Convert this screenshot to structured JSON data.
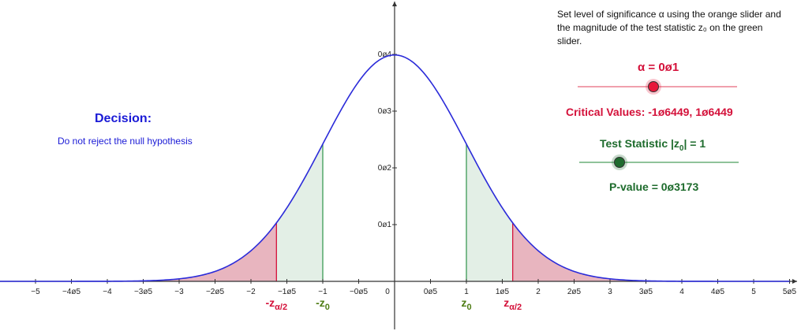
{
  "instructions": "Set level of significance α using the orange slider and the magnitude of the test statistic z₀ on the green slider.",
  "decision": {
    "title": "Decision:",
    "text": "Do not reject the null hypothesis"
  },
  "alpha": {
    "label": "α = 0ø1",
    "value": 0.1,
    "slider_min": 0.01,
    "slider_max": 0.2,
    "color": "#e8173b"
  },
  "critical_values": {
    "label": "Critical Values: -1ø6449, 1ø6449",
    "value": 1.6449,
    "color": "#d4113a"
  },
  "test_statistic": {
    "label_pre": "Test Statistic |z",
    "label_sub": "0",
    "label_post": "| = 1",
    "value": 1,
    "slider_min": 0,
    "slider_max": 4,
    "color": "#1f6b2e"
  },
  "p_value": {
    "label": "P-value = 0ø3173",
    "value": 0.3173
  },
  "chart_data": {
    "type": "area",
    "function": "standard normal density",
    "xlim": [
      -5.5,
      5.5
    ],
    "ylim": [
      0,
      0.4
    ],
    "x_ticks": [
      -5,
      -4.5,
      -4,
      -3.5,
      -3,
      -2.5,
      -2,
      -1.5,
      -1,
      -0.5,
      0,
      0.5,
      1,
      1.5,
      2,
      2.5,
      3,
      3.5,
      4,
      4.5,
      5,
      5.5
    ],
    "x_tick_labels": [
      "−5",
      "−4ø5",
      "−4",
      "−3ø5",
      "−3",
      "−2ø5",
      "−2",
      "−1ø5",
      "−1",
      "−0ø5",
      "0",
      "0ø5",
      "1",
      "1ø5",
      "2",
      "2ø5",
      "3",
      "3ø5",
      "4",
      "4ø5",
      "5",
      "5ø5"
    ],
    "y_ticks": [
      0.1,
      0.2,
      0.3,
      0.4
    ],
    "y_tick_labels": [
      "0ø1",
      "0ø2",
      "0ø3",
      "0ø4"
    ],
    "curve_color": "#2b2bd9",
    "rejection_region_color": "#e9aab7",
    "pvalue_region_color": "#e3efe6",
    "markers": {
      "z_alpha_2": {
        "value": 1.6449,
        "label": "z",
        "sub": "α/2",
        "color": "#d4113a"
      },
      "z0": {
        "value": 1,
        "label": "z",
        "sub": "0",
        "color": "#4f7d15"
      }
    }
  }
}
